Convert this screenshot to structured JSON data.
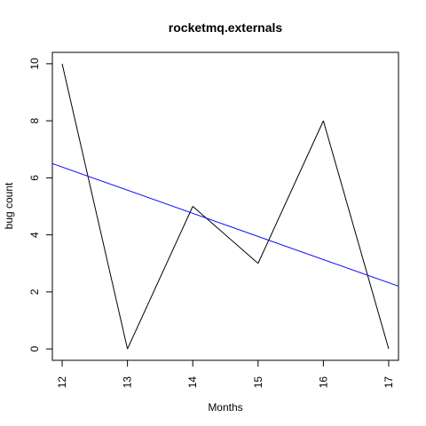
{
  "chart_data": {
    "type": "line",
    "title": "rocketmq.externals",
    "xlabel": "Months",
    "ylabel": "bug count",
    "x": [
      12,
      13,
      14,
      15,
      16,
      17
    ],
    "series": [
      {
        "values": [
          10,
          0,
          5,
          3,
          8,
          0
        ],
        "color": "#000000"
      }
    ],
    "trendline": {
      "color": "#0000ff",
      "y_at_x_min_edge": 6.5,
      "y_at_x_max_edge": 2.2
    },
    "xlim": [
      11.85,
      17.15
    ],
    "ylim": [
      -0.4,
      10.4
    ],
    "xticks": [
      "12",
      "13",
      "14",
      "15",
      "16",
      "17"
    ],
    "yticks": [
      "0",
      "2",
      "4",
      "6",
      "8",
      "10"
    ],
    "grid": false,
    "legend": "none"
  }
}
